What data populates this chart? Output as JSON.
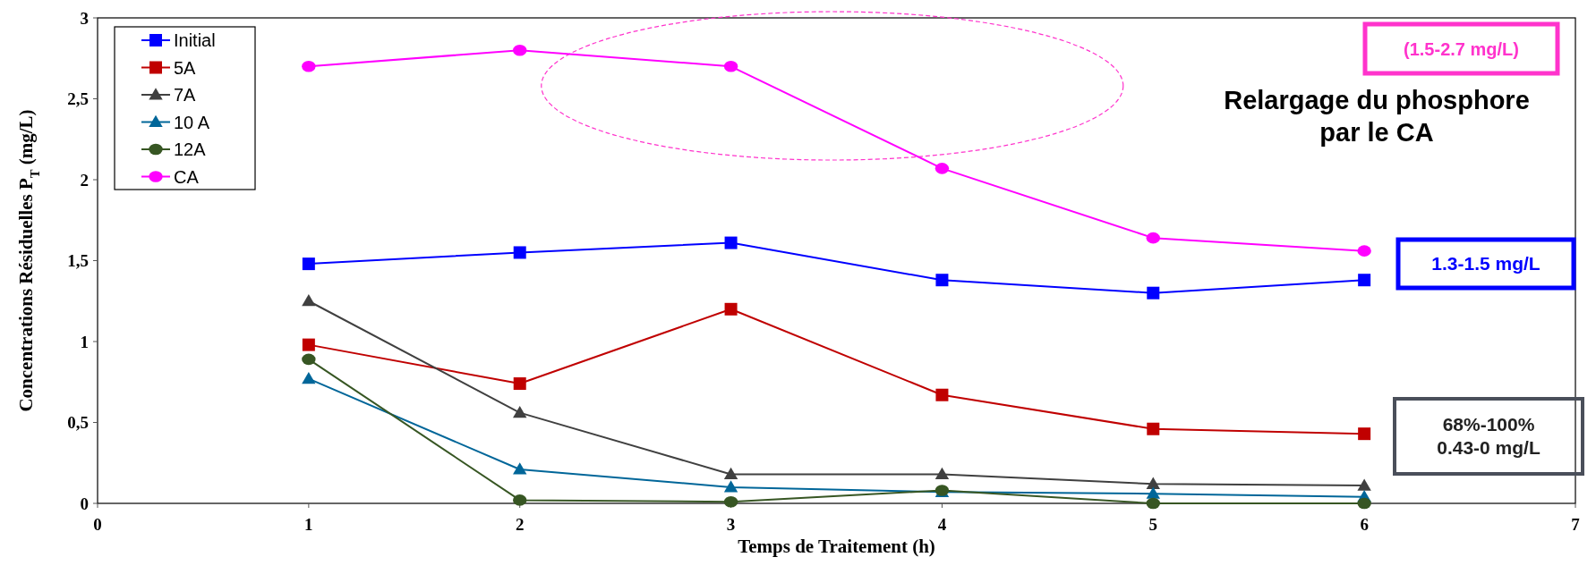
{
  "chart_data": {
    "type": "line",
    "xlabel": "Temps de Traitement (h)",
    "ylabel": "Concentrations Résiduelles  P$_{T}$ (mg/L)",
    "x": [
      1,
      2,
      3,
      4,
      5,
      6
    ],
    "series": [
      {
        "name": "Initial",
        "color": "#0000ff",
        "marker": "square",
        "values": [
          1.48,
          1.55,
          1.61,
          1.38,
          1.3,
          1.38
        ]
      },
      {
        "name": "5A",
        "color": "#c00000",
        "marker": "square",
        "values": [
          0.98,
          0.74,
          1.2,
          0.67,
          0.46,
          0.43
        ]
      },
      {
        "name": "7A",
        "color": "#404040",
        "marker": "triangle",
        "values": [
          1.25,
          0.56,
          0.18,
          0.18,
          0.12,
          0.11
        ]
      },
      {
        "name": "10 A",
        "color": "#006699",
        "marker": "triangle",
        "values": [
          0.77,
          0.21,
          0.1,
          0.07,
          0.06,
          0.04
        ]
      },
      {
        "name": "12A",
        "color": "#375623",
        "marker": "circle",
        "values": [
          0.89,
          0.02,
          0.01,
          0.08,
          0.0,
          0.0
        ]
      },
      {
        "name": "CA",
        "color": "#ff00ff",
        "marker": "circle",
        "values": [
          2.7,
          2.8,
          2.7,
          2.07,
          1.64,
          1.56
        ]
      }
    ],
    "xlim": [
      0,
      7
    ],
    "xticks": [
      0,
      1,
      2,
      3,
      4,
      5,
      6,
      7
    ],
    "ylim": [
      0,
      3
    ],
    "yticks": [
      0,
      {
        "value": 0.5,
        "label": "0,5"
      },
      1,
      {
        "value": 1.5,
        "label": "1,5"
      },
      2,
      {
        "value": 2.5,
        "label": "2,5"
      },
      3
    ],
    "grid": false,
    "legend": "top left",
    "line_style": "solid",
    "annotations": [
      "(1.5-2.7 mg/L)",
      "Relargage du phosphore\npar le CA",
      "1.3-1.5 mg/L",
      "68%-100%\n0.43-0 mg/L"
    ]
  }
}
